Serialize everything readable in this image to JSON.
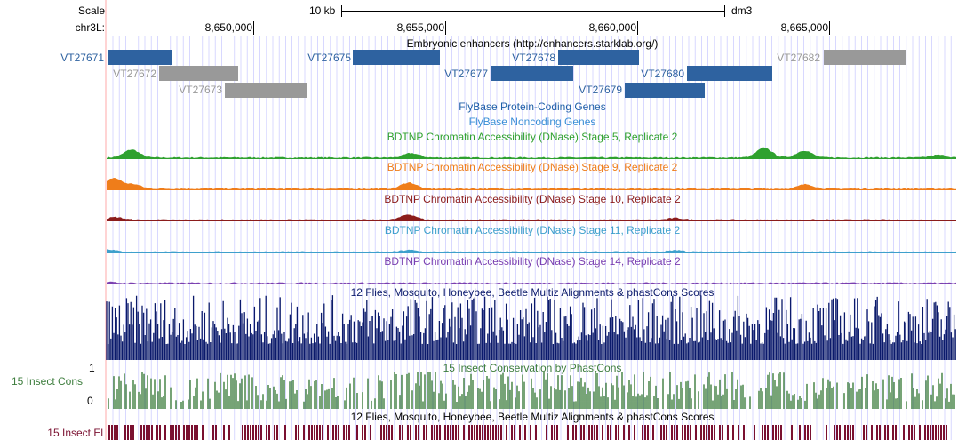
{
  "header": {
    "scale_label": "Scale",
    "scale_bar_text": "10 kb",
    "assembly": "dm3",
    "chrom_label": "chr3L:",
    "positions": [
      "8,650,000",
      "8,655,000",
      "8,660,000",
      "8,665,000"
    ]
  },
  "enhancers": {
    "title": "Embryonic enhancers (http://enhancers.starklab.org/)",
    "items": [
      {
        "id": "VT27671",
        "color": "blue",
        "row": 0
      },
      {
        "id": "VT27672",
        "color": "gray",
        "row": 1
      },
      {
        "id": "VT27673",
        "color": "gray",
        "row": 2
      },
      {
        "id": "VT27675",
        "color": "blue",
        "row": 0
      },
      {
        "id": "VT27677",
        "color": "blue",
        "row": 1
      },
      {
        "id": "VT27678",
        "color": "blue",
        "row": 0
      },
      {
        "id": "VT27679",
        "color": "blue",
        "row": 2
      },
      {
        "id": "VT27680",
        "color": "blue",
        "row": 1
      },
      {
        "id": "VT27682",
        "color": "gray",
        "row": 0
      }
    ]
  },
  "gene_tracks": {
    "protein_coding": "FlyBase Protein-Coding Genes",
    "noncoding": "FlyBase Noncoding Genes"
  },
  "dnase_tracks": [
    {
      "title": "BDTNP Chromatin Accessibility (DNase) Stage 5, Replicate 2",
      "color": "#2fa12f"
    },
    {
      "title": "BDTNP Chromatin Accessibility (DNase) Stage 9, Replicate 2",
      "color": "#ef7d1a"
    },
    {
      "title": "BDTNP Chromatin Accessibility (DNase) Stage 10, Replicate 2",
      "color": "#8b1c1c"
    },
    {
      "title": "BDTNP Chromatin Accessibility (DNase) Stage 11, Replicate 2",
      "color": "#3ea0cc"
    },
    {
      "title": "BDTNP Chromatin Accessibility (DNase) Stage 14, Replicate 2",
      "color": "#7a3fb0"
    }
  ],
  "conservation": {
    "multiz_title": "12 Flies, Mosquito, Honeybee, Beetle Multiz Alignments & phastCons Scores",
    "multiz_color": "#0b1a6b",
    "phastcons_title": "15 Insect Conservation by PhastCons",
    "phastcons_side_label": "15 Insect Cons",
    "axis_max": "1",
    "axis_min": "0",
    "phastcons_color": "#3d7d3d",
    "elements_title": "12 Flies, Mosquito, Honeybee, Beetle Multiz Alignments & phastCons Scores",
    "elements_side_label": "15 Insect El",
    "elements_color": "#7a1030"
  },
  "colors": {
    "enhancer_blue": "#2e62a0",
    "enhancer_gray": "#999999",
    "grid": "#c8c8ff",
    "guide": "#ffaaaa"
  }
}
